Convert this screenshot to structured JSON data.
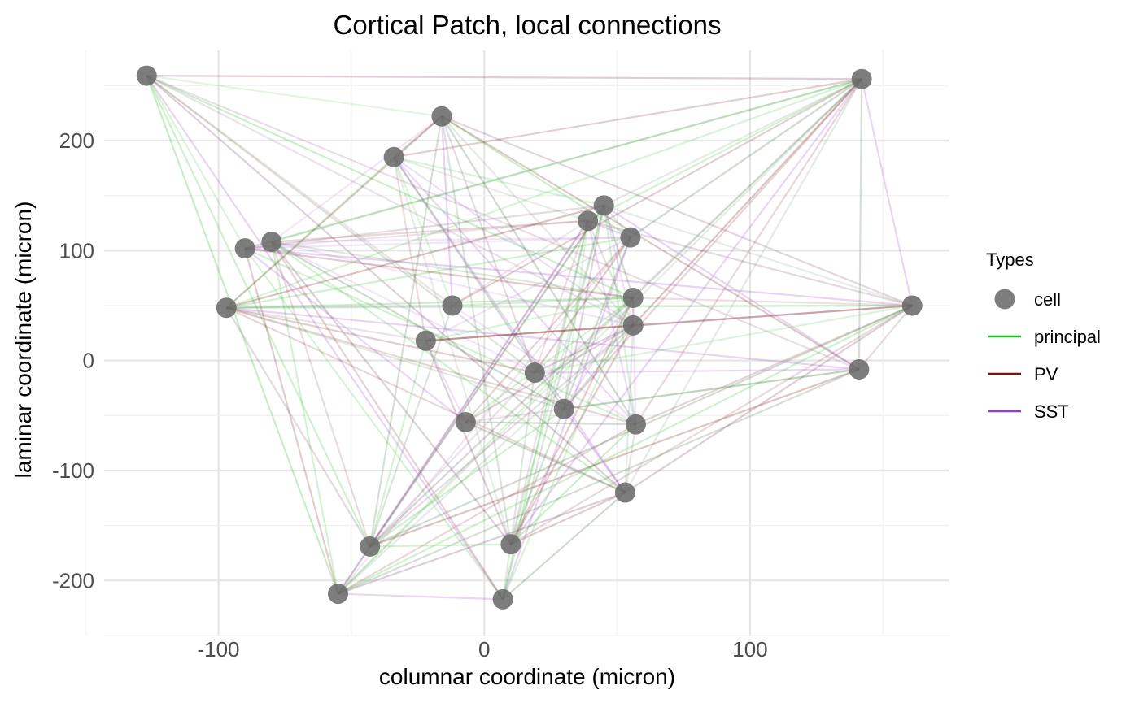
{
  "chart_data": {
    "type": "scatter",
    "title": "Cortical Patch, local connections",
    "xlabel": "columnar coordinate (micron)",
    "ylabel": "laminar coordinate (micron)",
    "xlim": [
      -143,
      175
    ],
    "ylim": [
      -250,
      282
    ],
    "x_ticks": [
      -100,
      0,
      100
    ],
    "x_tick_labels": [
      "-100",
      "0",
      "100"
    ],
    "y_ticks": [
      -200,
      -100,
      0,
      100,
      200
    ],
    "y_tick_labels": [
      "-200",
      "-100",
      "0",
      "100",
      "200"
    ],
    "grid": true,
    "legend": {
      "title": "Types",
      "position": "right",
      "entries": [
        {
          "label": "cell",
          "kind": "point",
          "color": "#666666"
        },
        {
          "label": "principal",
          "kind": "line",
          "color": "#22c022"
        },
        {
          "label": "PV",
          "kind": "line",
          "color": "#7a1010"
        },
        {
          "label": "SST",
          "kind": "line",
          "color": "#9b3fc9"
        }
      ]
    },
    "colors": {
      "principal": "#22c022",
      "PV": "#7a1010",
      "SST": "#9b3fc9",
      "cell": "#666666"
    },
    "cells": [
      {
        "x": -127,
        "y": 259
      },
      {
        "x": 142,
        "y": 256
      },
      {
        "x": -16,
        "y": 222
      },
      {
        "x": -34,
        "y": 185
      },
      {
        "x": 45,
        "y": 141
      },
      {
        "x": 39,
        "y": 127
      },
      {
        "x": 55,
        "y": 112
      },
      {
        "x": -90,
        "y": 102
      },
      {
        "x": -80,
        "y": 108
      },
      {
        "x": -97,
        "y": 48
      },
      {
        "x": -12,
        "y": 50
      },
      {
        "x": 56,
        "y": 57
      },
      {
        "x": 56,
        "y": 32
      },
      {
        "x": 161,
        "y": 50
      },
      {
        "x": -22,
        "y": 18
      },
      {
        "x": 19,
        "y": -11
      },
      {
        "x": 141,
        "y": -8
      },
      {
        "x": 30,
        "y": -44
      },
      {
        "x": -7,
        "y": -56
      },
      {
        "x": 57,
        "y": -58
      },
      {
        "x": 53,
        "y": -120
      },
      {
        "x": -43,
        "y": -169
      },
      {
        "x": 10,
        "y": -167
      },
      {
        "x": -55,
        "y": -212
      },
      {
        "x": 7,
        "y": -217
      }
    ]
  }
}
